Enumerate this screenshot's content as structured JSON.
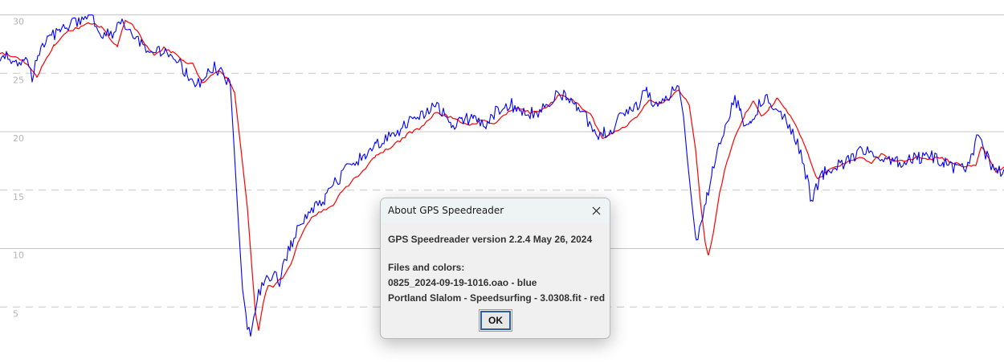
{
  "chart_data": {
    "type": "line",
    "y_ticks": [
      5,
      10,
      15,
      20,
      25,
      30
    ],
    "ylim": [
      0,
      31.5
    ],
    "grid": true,
    "series": [
      {
        "color": "#0000ff",
        "anchors": [
          [
            0,
            26.5
          ],
          [
            14,
            26.3
          ],
          [
            22,
            26.0
          ],
          [
            32,
            25.9
          ],
          [
            40,
            24.8
          ],
          [
            47,
            26.5
          ],
          [
            60,
            28.0
          ],
          [
            75,
            28.8
          ],
          [
            90,
            29.2
          ],
          [
            104,
            29.8
          ],
          [
            116,
            29.6
          ],
          [
            128,
            28.4
          ],
          [
            138,
            28.2
          ],
          [
            148,
            29.5
          ],
          [
            160,
            28.6
          ],
          [
            172,
            28.0
          ],
          [
            184,
            26.5
          ],
          [
            196,
            27.0
          ],
          [
            206,
            26.8
          ],
          [
            214,
            26.5
          ],
          [
            222,
            26.0
          ],
          [
            233,
            24.9
          ],
          [
            245,
            23.9
          ],
          [
            255,
            24.6
          ],
          [
            267,
            25.5
          ],
          [
            278,
            24.8
          ],
          [
            287,
            23.8
          ],
          [
            292,
            18.0
          ],
          [
            297,
            12.0
          ],
          [
            302,
            6.5
          ],
          [
            308,
            3.5
          ],
          [
            312,
            2.5
          ],
          [
            318,
            5.0
          ],
          [
            324,
            6.5
          ],
          [
            330,
            7.3
          ],
          [
            340,
            7.8
          ],
          [
            348,
            7.2
          ],
          [
            355,
            8.9
          ],
          [
            362,
            10.3
          ],
          [
            372,
            11.8
          ],
          [
            382,
            13.0
          ],
          [
            394,
            13.5
          ],
          [
            405,
            14.2
          ],
          [
            417,
            15.6
          ],
          [
            430,
            16.6
          ],
          [
            442,
            17.3
          ],
          [
            455,
            18.2
          ],
          [
            468,
            19.0
          ],
          [
            480,
            19.2
          ],
          [
            495,
            20.1
          ],
          [
            508,
            20.7
          ],
          [
            522,
            21.2
          ],
          [
            540,
            22.2
          ],
          [
            555,
            21.6
          ],
          [
            562,
            20.4
          ],
          [
            575,
            21.2
          ],
          [
            590,
            20.9
          ],
          [
            605,
            20.6
          ],
          [
            620,
            21.9
          ],
          [
            635,
            22.4
          ],
          [
            650,
            21.6
          ],
          [
            668,
            21.7
          ],
          [
            680,
            22.1
          ],
          [
            692,
            23.3
          ],
          [
            705,
            23.0
          ],
          [
            718,
            22.1
          ],
          [
            730,
            21.2
          ],
          [
            738,
            20.0
          ],
          [
            745,
            19.2
          ],
          [
            752,
            19.9
          ],
          [
            762,
            20.3
          ],
          [
            772,
            21.1
          ],
          [
            790,
            21.9
          ],
          [
            805,
            23.6
          ],
          [
            815,
            22.3
          ],
          [
            825,
            22.6
          ],
          [
            835,
            23.3
          ],
          [
            845,
            23.9
          ],
          [
            851,
            21.3
          ],
          [
            856,
            17.5
          ],
          [
            862,
            13.5
          ],
          [
            867,
            10.4
          ],
          [
            873,
            12.2
          ],
          [
            880,
            14.5
          ],
          [
            887,
            16.5
          ],
          [
            895,
            18.7
          ],
          [
            905,
            20.8
          ],
          [
            915,
            22.7
          ],
          [
            922,
            22.2
          ],
          [
            928,
            20.1
          ],
          [
            935,
            20.6
          ],
          [
            945,
            22.3
          ],
          [
            955,
            23.1
          ],
          [
            966,
            22.1
          ],
          [
            975,
            21.3
          ],
          [
            985,
            20.2
          ],
          [
            995,
            18.6
          ],
          [
            1003,
            16.4
          ],
          [
            1010,
            14.2
          ],
          [
            1016,
            15.3
          ],
          [
            1025,
            16.4
          ],
          [
            1038,
            17.0
          ],
          [
            1052,
            17.4
          ],
          [
            1065,
            18.0
          ],
          [
            1078,
            18.6
          ],
          [
            1090,
            18.1
          ],
          [
            1105,
            17.8
          ],
          [
            1118,
            17.4
          ],
          [
            1130,
            17.6
          ],
          [
            1145,
            17.8
          ],
          [
            1160,
            17.9
          ],
          [
            1175,
            17.4
          ],
          [
            1190,
            16.8
          ],
          [
            1205,
            17.0
          ],
          [
            1212,
            18.5
          ],
          [
            1218,
            20.0
          ],
          [
            1225,
            18.5
          ],
          [
            1232,
            17.4
          ],
          [
            1240,
            16.6
          ],
          [
            1250,
            16.8
          ]
        ]
      },
      {
        "color": "#ff0000",
        "anchors": [
          [
            0,
            26.8
          ],
          [
            10,
            26.6
          ],
          [
            22,
            26.3
          ],
          [
            35,
            25.8
          ],
          [
            46,
            24.6
          ],
          [
            55,
            26.0
          ],
          [
            68,
            27.5
          ],
          [
            82,
            28.5
          ],
          [
            98,
            28.9
          ],
          [
            112,
            29.3
          ],
          [
            126,
            29.0
          ],
          [
            136,
            28.1
          ],
          [
            146,
            27.3
          ],
          [
            156,
            29.6
          ],
          [
            168,
            28.9
          ],
          [
            180,
            27.6
          ],
          [
            192,
            26.5
          ],
          [
            204,
            27.2
          ],
          [
            215,
            26.8
          ],
          [
            228,
            26.0
          ],
          [
            240,
            25.8
          ],
          [
            252,
            24.2
          ],
          [
            262,
            24.7
          ],
          [
            272,
            25.2
          ],
          [
            282,
            24.6
          ],
          [
            292,
            23.4
          ],
          [
            300,
            18.5
          ],
          [
            308,
            13.5
          ],
          [
            314,
            8.0
          ],
          [
            318,
            4.5
          ],
          [
            322,
            3.0
          ],
          [
            328,
            5.5
          ],
          [
            334,
            6.8
          ],
          [
            342,
            6.8
          ],
          [
            352,
            7.6
          ],
          [
            362,
            8.6
          ],
          [
            372,
            10.7
          ],
          [
            385,
            12.4
          ],
          [
            400,
            13.2
          ],
          [
            412,
            13.5
          ],
          [
            425,
            14.8
          ],
          [
            440,
            15.9
          ],
          [
            455,
            16.8
          ],
          [
            468,
            18.0
          ],
          [
            480,
            18.4
          ],
          [
            495,
            19.1
          ],
          [
            510,
            19.9
          ],
          [
            525,
            20.4
          ],
          [
            542,
            21.6
          ],
          [
            555,
            21.4
          ],
          [
            570,
            21.0
          ],
          [
            585,
            20.5
          ],
          [
            600,
            21.0
          ],
          [
            615,
            20.6
          ],
          [
            630,
            21.5
          ],
          [
            645,
            22.1
          ],
          [
            660,
            21.6
          ],
          [
            680,
            22.0
          ],
          [
            696,
            23.1
          ],
          [
            710,
            22.8
          ],
          [
            722,
            22.2
          ],
          [
            735,
            21.5
          ],
          [
            750,
            19.5
          ],
          [
            760,
            19.8
          ],
          [
            772,
            20.1
          ],
          [
            790,
            21.1
          ],
          [
            808,
            22.6
          ],
          [
            820,
            22.4
          ],
          [
            833,
            22.8
          ],
          [
            845,
            23.6
          ],
          [
            858,
            22.3
          ],
          [
            866,
            18.5
          ],
          [
            872,
            14.0
          ],
          [
            878,
            10.5
          ],
          [
            882,
            9.4
          ],
          [
            888,
            11.3
          ],
          [
            896,
            14.8
          ],
          [
            905,
            17.5
          ],
          [
            915,
            19.5
          ],
          [
            928,
            21.5
          ],
          [
            938,
            22.6
          ],
          [
            948,
            21.3
          ],
          [
            958,
            22.0
          ],
          [
            968,
            22.9
          ],
          [
            978,
            22.0
          ],
          [
            990,
            20.6
          ],
          [
            1000,
            19.2
          ],
          [
            1010,
            17.2
          ],
          [
            1018,
            15.9
          ],
          [
            1028,
            16.5
          ],
          [
            1040,
            17.0
          ],
          [
            1055,
            17.4
          ],
          [
            1070,
            17.8
          ],
          [
            1085,
            17.4
          ],
          [
            1098,
            18.1
          ],
          [
            1112,
            17.5
          ],
          [
            1125,
            17.5
          ],
          [
            1140,
            17.8
          ],
          [
            1155,
            17.6
          ],
          [
            1170,
            17.8
          ],
          [
            1185,
            17.4
          ],
          [
            1200,
            17.0
          ],
          [
            1215,
            17.2
          ],
          [
            1222,
            18.7
          ],
          [
            1230,
            17.9
          ],
          [
            1240,
            16.6
          ],
          [
            1250,
            17.0
          ]
        ]
      }
    ]
  },
  "dialog": {
    "title": "About GPS Speedreader",
    "version_line": "GPS Speedreader version 2.2.4 May 26, 2024",
    "files_heading": "Files and colors:",
    "files": [
      "0825_2024-09-19-1016.oao - blue",
      "Portland Slalom - Speedsurfing - 3.0308.fit - red"
    ],
    "ok_label": "OK",
    "close_icon": "close-icon"
  }
}
